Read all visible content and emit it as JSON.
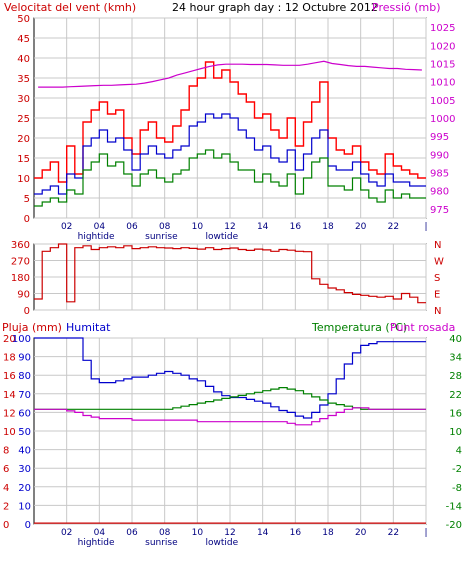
{
  "header": {
    "left_label": "Velocitat del vent (kmh)",
    "title": "24 hour graph day : 12 Octubre 2012",
    "right_label": "Pressió (mb)"
  },
  "colors": {
    "wind_gust": "#ff0000",
    "wind_avg": "#0000cc",
    "wind_min": "#008000",
    "pressure": "#cc00cc",
    "direction": "#cc0000",
    "humidity": "#0000cc",
    "temperature": "#008000",
    "dewpoint": "#cc00cc",
    "rain": "#cc0000",
    "grid": "#c8c8c8"
  },
  "chart_data": [
    {
      "type": "line",
      "x_hours": [
        0,
        0.5,
        1,
        1.5,
        2,
        2.5,
        3,
        3.5,
        4,
        4.5,
        5,
        5.5,
        6,
        6.5,
        7,
        7.5,
        8,
        8.5,
        9,
        9.5,
        10,
        10.5,
        11,
        11.5,
        12,
        12.5,
        13,
        13.5,
        14,
        14.5,
        15,
        15.5,
        16,
        16.5,
        17,
        17.5,
        18,
        18.5,
        19,
        19.5,
        20,
        20.5,
        21,
        21.5,
        22,
        22.5,
        23,
        23.5
      ],
      "x_ticks": [
        "02",
        "04",
        "06",
        "08",
        "10",
        "12",
        "14",
        "16",
        "18",
        "20",
        "22",
        "|"
      ],
      "x_tick_hours": [
        2,
        4,
        6,
        8,
        10,
        12,
        14,
        16,
        18,
        20,
        22,
        24
      ],
      "markers": [
        {
          "label": "hightide",
          "hour": 3.8
        },
        {
          "label": "sunrise",
          "hour": 7.8
        },
        {
          "label": "lowtide",
          "hour": 11.5
        }
      ],
      "left_axis": {
        "min": 0,
        "max": 50,
        "ticks": [
          "0",
          "5",
          "10",
          "15",
          "20",
          "25",
          "30",
          "35",
          "40",
          "45",
          "50"
        ]
      },
      "right_axis": {
        "min": 972.5,
        "max": 1027.5,
        "ticks": [
          "975",
          "980",
          "985",
          "990",
          "995",
          "1000",
          "1005",
          "1010",
          "1015",
          "1020",
          "1025"
        ]
      },
      "series": [
        {
          "key": "gust",
          "values": [
            10,
            12,
            14,
            9,
            18,
            11,
            24,
            27,
            29,
            26,
            27,
            20,
            16,
            22,
            24,
            20,
            19,
            23,
            27,
            33,
            35,
            39,
            35,
            37,
            34,
            31,
            29,
            25,
            26,
            22,
            20,
            25,
            18,
            24,
            29,
            34,
            20,
            17,
            16,
            18,
            14,
            12,
            11,
            16,
            13,
            12,
            11,
            10
          ]
        },
        {
          "key": "avg",
          "values": [
            6,
            7,
            8,
            6,
            11,
            10,
            18,
            20,
            22,
            19,
            20,
            17,
            12,
            16,
            18,
            16,
            15,
            17,
            18,
            23,
            24,
            26,
            25,
            26,
            25,
            22,
            20,
            17,
            18,
            15,
            14,
            17,
            12,
            16,
            20,
            22,
            13,
            12,
            12,
            14,
            11,
            9,
            8,
            11,
            9,
            9,
            8,
            8
          ]
        },
        {
          "key": "min",
          "values": [
            3,
            4,
            5,
            4,
            7,
            6,
            12,
            14,
            16,
            13,
            14,
            11,
            8,
            11,
            12,
            10,
            9,
            11,
            12,
            15,
            16,
            17,
            15,
            16,
            14,
            12,
            12,
            9,
            11,
            9,
            8,
            11,
            6,
            10,
            14,
            15,
            8,
            8,
            7,
            10,
            7,
            5,
            4,
            7,
            5,
            6,
            5,
            5
          ]
        },
        {
          "key": "pressure",
          "values": [
            1008.5,
            1008.5,
            1008.5,
            1008.5,
            1008.6,
            1008.7,
            1008.8,
            1008.9,
            1009,
            1009,
            1009.1,
            1009.2,
            1009.3,
            1009.6,
            1010,
            1010.5,
            1011,
            1011.8,
            1012.4,
            1013,
            1013.6,
            1014.2,
            1014.6,
            1014.8,
            1014.8,
            1014.8,
            1014.7,
            1014.7,
            1014.7,
            1014.6,
            1014.5,
            1014.5,
            1014.5,
            1014.8,
            1015.2,
            1015.6,
            1015,
            1014.7,
            1014.4,
            1014.2,
            1014.2,
            1014,
            1013.8,
            1013.6,
            1013.6,
            1013.4,
            1013.3,
            1013.2
          ]
        }
      ]
    },
    {
      "type": "line",
      "axis_left_ticks": [
        "360",
        "270",
        "180",
        "90",
        "0"
      ],
      "axis_right_labels": [
        "N",
        "W",
        "S",
        "E",
        "N"
      ],
      "values": [
        60,
        320,
        340,
        360,
        45,
        340,
        350,
        330,
        340,
        345,
        340,
        350,
        335,
        340,
        345,
        340,
        338,
        335,
        340,
        336,
        332,
        340,
        330,
        335,
        338,
        330,
        325,
        332,
        328,
        320,
        330,
        326,
        320,
        318,
        170,
        140,
        120,
        110,
        95,
        85,
        80,
        75,
        70,
        75,
        60,
        90,
        70,
        40
      ]
    },
    {
      "type": "line",
      "left_label": "Pluja (mm)",
      "left_axis_name": "Humitat",
      "right_label": "Temperatura (°C)",
      "right_label2": "Punt rosada",
      "rain_axis": {
        "min": 0,
        "max": 20,
        "ticks": [
          "0",
          "2",
          "4",
          "6",
          "8",
          "10",
          "12",
          "14",
          "16",
          "18",
          "20"
        ]
      },
      "humidity_axis": {
        "min": 0,
        "max": 100,
        "ticks": [
          "0",
          "10",
          "20",
          "30",
          "40",
          "50",
          "60",
          "70",
          "80",
          "90",
          "100"
        ]
      },
      "temp_axis": {
        "min": -20,
        "max": 40,
        "ticks": [
          "-20",
          "-14",
          "-8",
          "-2",
          "4",
          "10",
          "16",
          "22",
          "28",
          "34",
          "40"
        ]
      },
      "series": [
        {
          "key": "humidity",
          "values": [
            100,
            100,
            100,
            100,
            100,
            100,
            88,
            78,
            76,
            76,
            77,
            78,
            79,
            79,
            80,
            81,
            82,
            81,
            80,
            78,
            77,
            74,
            71,
            69,
            68,
            68,
            67,
            66,
            65,
            63,
            61,
            60,
            58,
            57,
            60,
            64,
            70,
            78,
            86,
            92,
            96,
            97,
            98,
            98,
            98,
            98,
            98,
            98
          ]
        },
        {
          "key": "temperature",
          "values": [
            17,
            17,
            17,
            17,
            17,
            17,
            17,
            17,
            17,
            17,
            17,
            17,
            17,
            17,
            17,
            17,
            17,
            17.5,
            18,
            18.5,
            19,
            19.5,
            20,
            20.5,
            21,
            21.5,
            22,
            22.5,
            23,
            23.5,
            24,
            23.5,
            23,
            22,
            21,
            20,
            19,
            18.5,
            18,
            17.5,
            17,
            17,
            17,
            17,
            17,
            17,
            17,
            17
          ]
        },
        {
          "key": "dewpoint",
          "values": [
            17,
            17,
            17,
            17,
            16.5,
            16,
            15,
            14.5,
            14,
            14,
            14,
            14,
            13.5,
            13.5,
            13.5,
            13.5,
            13.5,
            13.5,
            13.5,
            13.5,
            13,
            13,
            13,
            13,
            13,
            13,
            13,
            13,
            13,
            13,
            13,
            12.5,
            12,
            12,
            13,
            14,
            15,
            16,
            17,
            17.5,
            17.5,
            17,
            17,
            17,
            17,
            17,
            17,
            17
          ]
        },
        {
          "key": "rain",
          "values": [
            0.1,
            0.1,
            0.1,
            0.1,
            0.1,
            0.1,
            0.1,
            0.1,
            0.1,
            0.1,
            0.1,
            0.1,
            0.1,
            0.1,
            0.1,
            0.1,
            0.1,
            0.1,
            0.1,
            0.1,
            0.1,
            0.1,
            0.1,
            0.1,
            0.1,
            0.1,
            0.1,
            0.1,
            0.1,
            0.1,
            0.1,
            0.1,
            0.1,
            0.1,
            0.1,
            0.1,
            0.1,
            0.1,
            0.1,
            0.1,
            0.1,
            0.1,
            0.1,
            0.1,
            0.1,
            0.1,
            0.1,
            0.1
          ]
        }
      ]
    }
  ]
}
